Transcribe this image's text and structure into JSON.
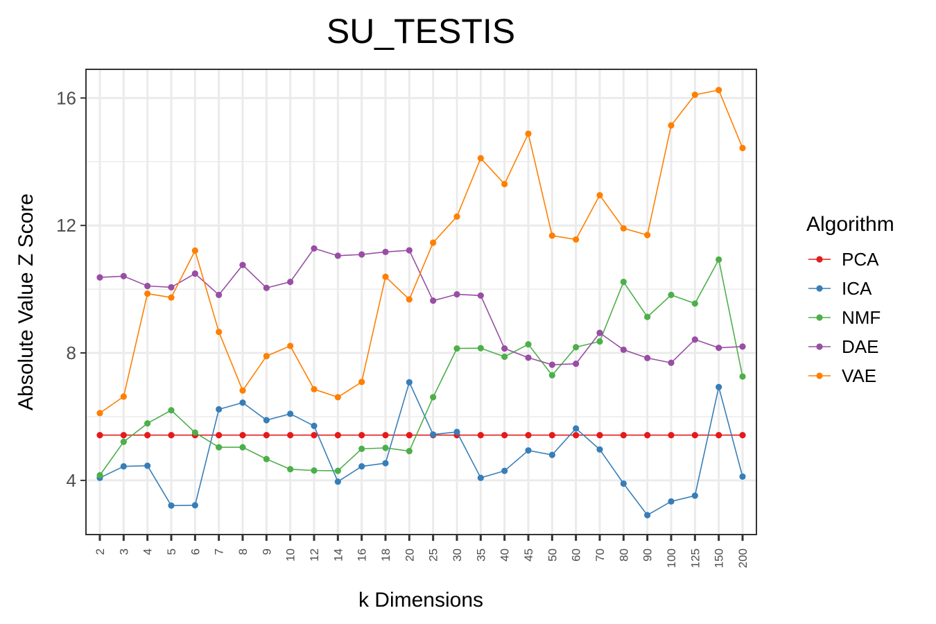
{
  "chart_data": {
    "type": "line",
    "title": "SU_TESTIS",
    "xlabel": "k Dimensions",
    "ylabel": "Absolute Value Z Score",
    "categories": [
      "2",
      "3",
      "4",
      "5",
      "6",
      "7",
      "8",
      "9",
      "10",
      "12",
      "14",
      "16",
      "18",
      "20",
      "25",
      "30",
      "35",
      "40",
      "45",
      "50",
      "60",
      "70",
      "80",
      "90",
      "100",
      "125",
      "150",
      "200"
    ],
    "ylim": [
      2.3,
      16.9
    ],
    "yticks": [
      4,
      8,
      12,
      16
    ],
    "grid": true,
    "legend_title": "Algorithm",
    "legend_position": "right",
    "series": [
      {
        "name": "PCA",
        "color": "#E41A1C",
        "values": [
          5.42,
          5.42,
          5.42,
          5.42,
          5.42,
          5.42,
          5.42,
          5.42,
          5.42,
          5.42,
          5.42,
          5.42,
          5.42,
          5.42,
          5.42,
          5.42,
          5.42,
          5.42,
          5.42,
          5.42,
          5.42,
          5.42,
          5.42,
          5.42,
          5.42,
          5.42,
          5.42,
          5.42
        ]
      },
      {
        "name": "ICA",
        "color": "#377EB8",
        "values": [
          4.08,
          4.44,
          4.46,
          3.21,
          3.22,
          6.23,
          6.44,
          5.89,
          6.09,
          5.71,
          3.96,
          4.44,
          4.54,
          7.08,
          5.44,
          5.52,
          4.08,
          4.3,
          4.94,
          4.8,
          5.63,
          4.97,
          3.9,
          2.91,
          3.34,
          3.52,
          6.93,
          4.12
        ]
      },
      {
        "name": "NMF",
        "color": "#4DAF4A",
        "values": [
          4.16,
          5.21,
          5.79,
          6.2,
          5.5,
          5.04,
          5.04,
          4.67,
          4.35,
          4.31,
          4.3,
          4.99,
          5.02,
          4.92,
          6.61,
          8.14,
          8.15,
          7.88,
          8.27,
          7.3,
          8.18,
          8.36,
          10.23,
          9.13,
          9.82,
          9.55,
          10.93,
          7.26
        ]
      },
      {
        "name": "DAE",
        "color": "#984EA3",
        "values": [
          10.37,
          10.41,
          10.1,
          10.06,
          10.49,
          9.82,
          10.76,
          10.04,
          10.23,
          11.28,
          11.05,
          11.09,
          11.17,
          11.22,
          9.64,
          9.84,
          9.8,
          8.14,
          7.85,
          7.63,
          7.66,
          8.63,
          8.1,
          7.84,
          7.69,
          8.42,
          8.16,
          8.2
        ]
      },
      {
        "name": "VAE",
        "color": "#FF7F00",
        "values": [
          6.11,
          6.63,
          9.86,
          9.74,
          11.21,
          8.66,
          6.82,
          7.9,
          8.22,
          6.86,
          6.61,
          7.09,
          10.39,
          9.68,
          11.46,
          12.28,
          14.11,
          13.3,
          14.88,
          11.68,
          11.56,
          12.95,
          11.91,
          11.7,
          15.14,
          16.1,
          16.25,
          14.43
        ]
      }
    ]
  }
}
